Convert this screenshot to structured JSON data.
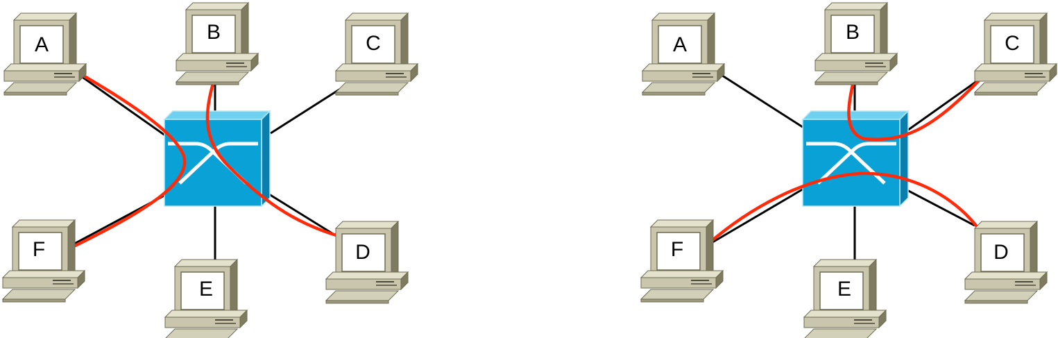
{
  "diagrams": [
    {
      "name": "left",
      "nodes": [
        {
          "id": "A",
          "label": "A"
        },
        {
          "id": "B",
          "label": "B"
        },
        {
          "id": "C",
          "label": "C"
        },
        {
          "id": "D",
          "label": "D"
        },
        {
          "id": "E",
          "label": "E"
        },
        {
          "id": "F",
          "label": "F"
        }
      ],
      "active_paths": [
        [
          "A",
          "F"
        ],
        [
          "B",
          "D"
        ]
      ]
    },
    {
      "name": "right",
      "nodes": [
        {
          "id": "A",
          "label": "A"
        },
        {
          "id": "B",
          "label": "B"
        },
        {
          "id": "C",
          "label": "C"
        },
        {
          "id": "D",
          "label": "D"
        },
        {
          "id": "E",
          "label": "E"
        },
        {
          "id": "F",
          "label": "F"
        }
      ],
      "active_paths": [
        [
          "B",
          "C"
        ],
        [
          "F",
          "D"
        ]
      ]
    }
  ],
  "colors": {
    "switch_front": "#0aa2d6",
    "switch_top": "#6fd0ef",
    "switch_side": "#0a7fae",
    "computer_body": "#c9c6ad",
    "computer_side": "#7e7b61",
    "computer_top": "#e4e2cc",
    "link": "#000000",
    "path": "#ff2a0a"
  },
  "icons": {
    "switch": "network-switch-icon",
    "computer": "workstation-icon"
  }
}
